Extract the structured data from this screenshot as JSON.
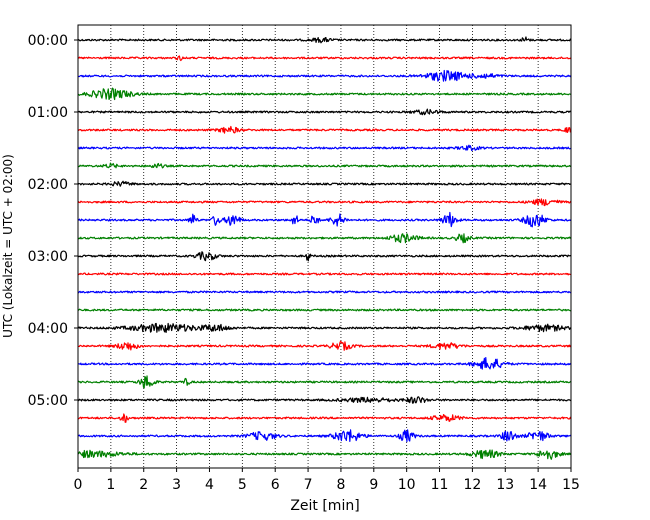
{
  "chart_data": {
    "type": "line",
    "title": "",
    "xlabel": "Zeit  [min]",
    "ylabel": "UTC (Lokalzeit = UTC + 02:00)",
    "xlim": [
      0,
      15
    ],
    "x_ticks": [
      "0",
      "1",
      "2",
      "3",
      "4",
      "5",
      "6",
      "7",
      "8",
      "9",
      "10",
      "11",
      "12",
      "13",
      "14",
      "15"
    ],
    "y_tick_labels": [
      "00:00",
      "01:00",
      "02:00",
      "03:00",
      "04:00",
      "05:00"
    ],
    "y_tick_rows": [
      0,
      4,
      8,
      12,
      16,
      20
    ],
    "grid": "vertical-dotted",
    "trace_minutes": 15,
    "trace_colors": [
      "#000000",
      "#ff0000",
      "#0000ff",
      "#008000"
    ],
    "traces": [
      {
        "start": "00:00",
        "color": "#000000",
        "bursts": [
          {
            "t": 7.4,
            "amp": 2,
            "w": 0.3
          },
          {
            "t": 13.6,
            "amp": 3,
            "w": 0.1
          }
        ]
      },
      {
        "start": "00:15",
        "color": "#ff0000",
        "bursts": [
          {
            "t": 3.1,
            "amp": 2,
            "w": 0.1
          }
        ]
      },
      {
        "start": "00:30",
        "color": "#0000ff",
        "bursts": [
          {
            "t": 11.2,
            "amp": 5,
            "w": 0.6
          },
          {
            "t": 12.4,
            "amp": 2,
            "w": 0.4
          }
        ]
      },
      {
        "start": "00:45",
        "color": "#008000",
        "bursts": [
          {
            "t": 1.0,
            "amp": 5,
            "w": 0.6
          }
        ]
      },
      {
        "start": "01:00",
        "color": "#000000",
        "bursts": [
          {
            "t": 10.6,
            "amp": 2,
            "w": 0.4
          }
        ]
      },
      {
        "start": "01:15",
        "color": "#ff0000",
        "bursts": [
          {
            "t": 4.6,
            "amp": 3,
            "w": 0.3
          },
          {
            "t": 14.9,
            "amp": 3,
            "w": 0.1
          }
        ]
      },
      {
        "start": "01:30",
        "color": "#0000ff",
        "bursts": [
          {
            "t": 11.9,
            "amp": 2,
            "w": 0.3
          }
        ]
      },
      {
        "start": "01:45",
        "color": "#008000",
        "bursts": [
          {
            "t": 1.0,
            "amp": 2,
            "w": 0.2
          },
          {
            "t": 2.4,
            "amp": 2,
            "w": 0.2
          }
        ]
      },
      {
        "start": "02:00",
        "color": "#000000",
        "bursts": [
          {
            "t": 1.3,
            "amp": 2,
            "w": 0.3
          }
        ]
      },
      {
        "start": "02:15",
        "color": "#ff0000",
        "bursts": [
          {
            "t": 14.2,
            "amp": 3,
            "w": 0.4
          }
        ]
      },
      {
        "start": "02:30",
        "color": "#0000ff",
        "bursts": [
          {
            "t": 3.5,
            "amp": 6,
            "w": 0.1
          },
          {
            "t": 4.2,
            "amp": 6,
            "w": 0.1
          },
          {
            "t": 4.7,
            "amp": 6,
            "w": 0.2
          },
          {
            "t": 6.6,
            "amp": 5,
            "w": 0.1
          },
          {
            "t": 7.2,
            "amp": 7,
            "w": 0.1
          },
          {
            "t": 7.9,
            "amp": 6,
            "w": 0.2
          },
          {
            "t": 11.3,
            "amp": 7,
            "w": 0.2
          },
          {
            "t": 13.9,
            "amp": 7,
            "w": 0.3
          }
        ]
      },
      {
        "start": "02:45",
        "color": "#008000",
        "bursts": [
          {
            "t": 9.9,
            "amp": 4,
            "w": 0.4
          },
          {
            "t": 11.7,
            "amp": 4,
            "w": 0.2
          }
        ]
      },
      {
        "start": "03:00",
        "color": "#000000",
        "bursts": [
          {
            "t": 3.9,
            "amp": 4,
            "w": 0.3
          },
          {
            "t": 7.0,
            "amp": 7,
            "w": 0.05
          }
        ]
      },
      {
        "start": "03:15",
        "color": "#ff0000",
        "bursts": []
      },
      {
        "start": "03:30",
        "color": "#0000ff",
        "bursts": []
      },
      {
        "start": "03:45",
        "color": "#008000",
        "bursts": []
      },
      {
        "start": "04:00",
        "color": "#000000",
        "bursts": [
          {
            "t": 2.6,
            "amp": 4,
            "w": 1.0
          },
          {
            "t": 4.2,
            "amp": 3,
            "w": 0.4
          },
          {
            "t": 14.2,
            "amp": 3,
            "w": 0.6
          }
        ]
      },
      {
        "start": "04:15",
        "color": "#ff0000",
        "bursts": [
          {
            "t": 1.5,
            "amp": 4,
            "w": 0.3
          },
          {
            "t": 8.0,
            "amp": 4,
            "w": 0.3
          },
          {
            "t": 11.2,
            "amp": 3,
            "w": 0.4
          }
        ]
      },
      {
        "start": "04:30",
        "color": "#0000ff",
        "bursts": [
          {
            "t": 12.5,
            "amp": 6,
            "w": 0.4
          }
        ]
      },
      {
        "start": "04:45",
        "color": "#008000",
        "bursts": [
          {
            "t": 2.1,
            "amp": 7,
            "w": 0.2
          },
          {
            "t": 3.3,
            "amp": 3,
            "w": 0.1
          }
        ]
      },
      {
        "start": "05:00",
        "color": "#000000",
        "bursts": [
          {
            "t": 8.8,
            "amp": 2,
            "w": 0.8
          },
          {
            "t": 10.3,
            "amp": 3,
            "w": 0.3
          }
        ]
      },
      {
        "start": "05:15",
        "color": "#ff0000",
        "bursts": [
          {
            "t": 1.4,
            "amp": 5,
            "w": 0.1
          },
          {
            "t": 11.2,
            "amp": 3,
            "w": 0.4
          }
        ]
      },
      {
        "start": "05:30",
        "color": "#0000ff",
        "bursts": [
          {
            "t": 5.6,
            "amp": 4,
            "w": 0.4
          },
          {
            "t": 8.2,
            "amp": 6,
            "w": 0.4
          },
          {
            "t": 10.0,
            "amp": 6,
            "w": 0.2
          },
          {
            "t": 13.1,
            "amp": 6,
            "w": 0.2
          },
          {
            "t": 14.0,
            "amp": 5,
            "w": 0.3
          }
        ]
      },
      {
        "start": "05:45",
        "color": "#008000",
        "bursts": [
          {
            "t": 0.3,
            "amp": 3,
            "w": 1.0
          },
          {
            "t": 12.4,
            "amp": 4,
            "w": 0.4
          },
          {
            "t": 14.3,
            "amp": 5,
            "w": 0.3
          }
        ]
      }
    ]
  }
}
